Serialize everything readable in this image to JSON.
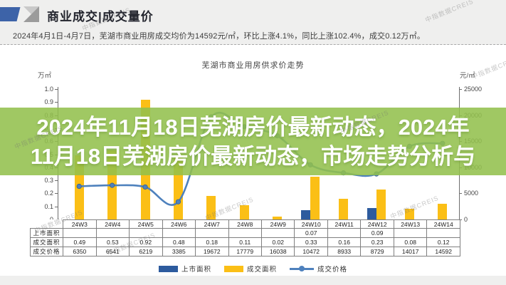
{
  "header": {
    "title": "商业成交|成交量价"
  },
  "summary": "2024年4月1日-4月7日，芜湖市商业用房成交均价为14592元/㎡，环比上涨4.1%，同比上涨102.4%，成交0.12万㎡。",
  "watermark": "中指数据CREIS",
  "overlay": {
    "line1": "2024年11月18日芜湖房价最新动态，2024年",
    "line2": "11月18日芜湖房价最新动态，市场走势分析与"
  },
  "chart_data": {
    "type": "bar",
    "subtype": "combo-bar-line",
    "title": "芜湖市商业用房供求价走势",
    "categories": [
      "24W3",
      "24W4",
      "24W5",
      "24W6",
      "24W7",
      "24W8",
      "24W9",
      "24W10",
      "24W11",
      "24W12",
      "24W13",
      "24W14"
    ],
    "series": [
      {
        "name": "上市面积",
        "type": "bar",
        "axis": "left",
        "color": "#2d5b9e",
        "values": [
          null,
          null,
          null,
          null,
          null,
          null,
          null,
          0.07,
          null,
          0.09,
          null,
          null
        ]
      },
      {
        "name": "成交面积",
        "type": "bar",
        "axis": "left",
        "color": "#fbbf16",
        "values": [
          0.49,
          0.53,
          0.92,
          0.48,
          0.18,
          0.11,
          0.02,
          0.33,
          0.16,
          0.23,
          0.08,
          0.12
        ]
      },
      {
        "name": "成交价格",
        "type": "line",
        "axis": "right",
        "color": "#4e81bd",
        "values": [
          6350,
          6541,
          6219,
          3385,
          19672,
          17779,
          16038,
          10472,
          8933,
          8729,
          14017,
          14592
        ]
      }
    ],
    "left_axis": {
      "label": "万㎡",
      "min": 0,
      "max": 1,
      "step": 0.1
    },
    "right_axis": {
      "label": "元/㎡",
      "min": 0,
      "max": 25000,
      "step": 5000
    },
    "legend_position": "bottom",
    "grid": false
  },
  "table": {
    "columns": [
      "24W3",
      "24W4",
      "24W5",
      "24W6",
      "24W7",
      "24W8",
      "24W9",
      "24W10",
      "24W11",
      "24W12",
      "24W13",
      "24W14"
    ],
    "rows": [
      {
        "label": "上市面积",
        "values": [
          "",
          "",
          "",
          "",
          "",
          "",
          "",
          "0.07",
          "",
          "0.09",
          "",
          ""
        ]
      },
      {
        "label": "成交面积",
        "values": [
          "0.49",
          "0.53",
          "0.92",
          "0.48",
          "0.18",
          "0.11",
          "0.02",
          "0.33",
          "0.16",
          "0.23",
          "0.08",
          "0.12"
        ]
      },
      {
        "label": "成交价格",
        "values": [
          "6350",
          "6541",
          "6219",
          "3385",
          "19672",
          "17779",
          "16038",
          "10472",
          "8933",
          "8729",
          "14017",
          "14592"
        ]
      }
    ]
  }
}
